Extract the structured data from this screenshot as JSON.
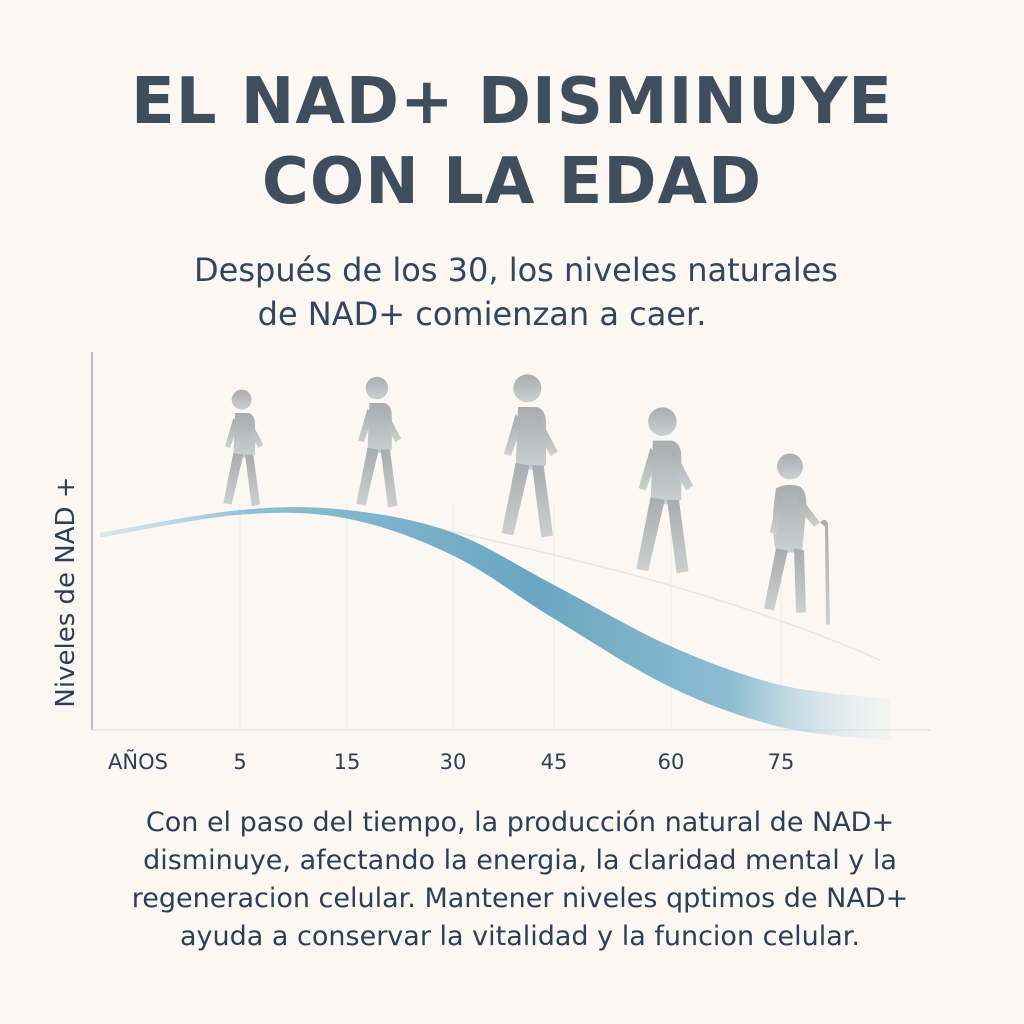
{
  "header": {
    "title_line1": "EL NAD+ DISMINUYE",
    "title_line2": "CON LA EDAD",
    "subtitle_line1": "Después de los 30, los niveles naturales",
    "subtitle_line2": "de NAD+ comienzan a caer."
  },
  "chart_data": {
    "type": "area",
    "ylabel": "Niveles de NAD +",
    "xlabel": "AÑOS",
    "categories": [
      "5",
      "15",
      "30",
      "45",
      "60",
      "75"
    ],
    "x": [
      0,
      5,
      15,
      30,
      45,
      60,
      75,
      90
    ],
    "series": [
      {
        "values": [
          0.85,
          0.95,
          0.95,
          0.85,
          0.62,
          0.35,
          0.18,
          0.12
        ]
      }
    ],
    "ylim": [
      0,
      1
    ],
    "grid": true,
    "colors": {
      "curve": "#5a9ab8",
      "figure": "#b2b5b6",
      "axis": "#b9bfcc"
    },
    "figures": [
      "walking-person-icon",
      "walking-person-icon",
      "walking-person-icon",
      "walking-person-icon",
      "elderly-person-with-cane-icon"
    ]
  },
  "footer": {
    "paragraph": "Con el paso del tiempo, la producción natural de NAD+ disminuye, afectando la energia, la claridad mental y la regeneracion celular. Mantener niveles qptimos de NAD+ ayuda a conservar la vitalidad y la funcion celular."
  }
}
